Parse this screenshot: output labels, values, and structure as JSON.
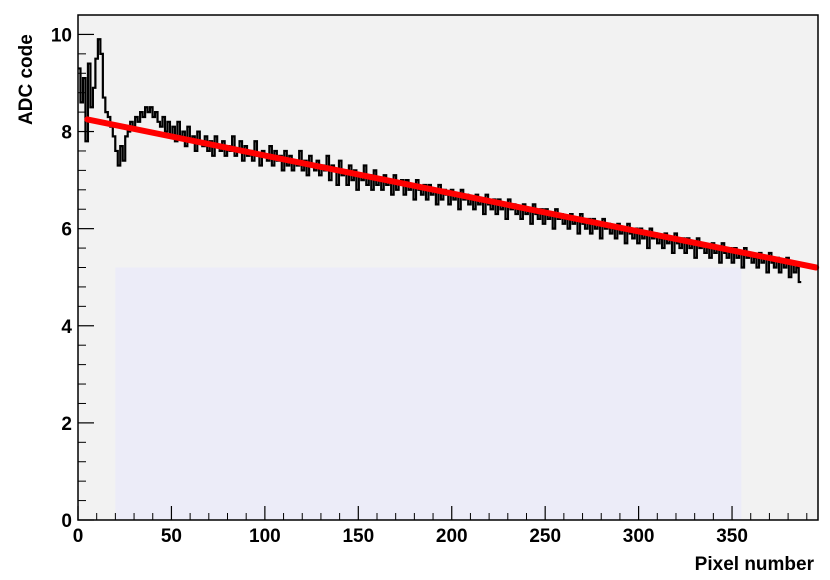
{
  "chart_data": {
    "type": "line",
    "title": "",
    "xlabel": "Pixel number",
    "ylabel": "ADC code",
    "xlim": [
      0,
      396
    ],
    "ylim": [
      0,
      10.4
    ],
    "x_ticks": [
      0,
      50,
      100,
      150,
      200,
      250,
      300,
      350
    ],
    "y_ticks": [
      0,
      2,
      4,
      6,
      8,
      10
    ],
    "grid": false,
    "legend": "none",
    "colors": {
      "frame_bg": "#f2f2f2",
      "shaded_region": "#ececf8",
      "histogram": "#000000",
      "fit": "#ff0000",
      "axes": "#000000"
    },
    "shaded_region": {
      "x": [
        20,
        355
      ],
      "y": [
        0,
        5.2
      ]
    },
    "series": [
      {
        "type": "step",
        "bin_width": 1,
        "x_start": 0,
        "values": [
          9.3,
          8.6,
          9.1,
          7.8,
          9.4,
          8.5,
          8.9,
          9.5,
          9.9,
          9.6,
          8.7,
          8.4,
          8.3,
          8.1,
          7.9,
          7.6,
          7.3,
          7.7,
          7.4,
          7.9,
          8.0,
          8.2,
          8.1,
          8.3,
          8.2,
          8.4,
          8.3,
          8.5,
          8.4,
          8.5,
          8.3,
          8.4,
          8.2,
          8.1,
          8.3,
          8.0,
          8.2,
          7.9,
          8.1,
          7.8,
          8.2,
          7.9,
          8.0,
          7.7,
          8.1,
          7.8,
          7.9,
          7.6,
          8.0,
          7.8,
          7.7,
          7.9,
          7.6,
          7.8,
          7.5,
          7.9,
          7.7,
          7.6,
          7.8,
          7.5,
          7.7,
          7.6,
          7.9,
          7.5,
          7.6,
          7.8,
          7.4,
          7.7,
          7.5,
          7.6,
          7.4,
          7.8,
          7.5,
          7.3,
          7.6,
          7.5,
          7.4,
          7.7,
          7.3,
          7.6,
          7.4,
          7.5,
          7.2,
          7.6,
          7.3,
          7.5,
          7.2,
          7.4,
          7.3,
          7.6,
          7.2,
          7.4,
          7.1,
          7.5,
          7.3,
          7.2,
          7.4,
          7.1,
          7.3,
          7.2,
          7.5,
          7.0,
          7.3,
          7.2,
          6.9,
          7.4,
          7.1,
          7.2,
          6.9,
          7.3,
          7.0,
          7.2,
          6.8,
          7.1,
          7.0,
          7.3,
          6.9,
          7.1,
          6.8,
          7.2,
          6.9,
          7.0,
          6.8,
          7.1,
          6.9,
          7.0,
          6.7,
          7.1,
          6.8,
          6.9,
          7.0,
          6.7,
          7.0,
          6.8,
          6.9,
          6.6,
          7.0,
          6.8,
          6.7,
          6.9,
          6.6,
          6.9,
          6.7,
          6.8,
          6.5,
          6.9,
          6.6,
          6.8,
          6.7,
          6.5,
          6.8,
          6.6,
          6.7,
          6.4,
          6.8,
          6.6,
          6.7,
          6.5,
          6.6,
          6.4,
          6.7,
          6.5,
          6.6,
          6.3,
          6.7,
          6.5,
          6.4,
          6.6,
          6.3,
          6.6,
          6.4,
          6.5,
          6.2,
          6.6,
          6.4,
          6.5,
          6.3,
          6.4,
          6.2,
          6.5,
          6.3,
          6.4,
          6.1,
          6.5,
          6.3,
          6.2,
          6.4,
          6.1,
          6.4,
          6.2,
          6.3,
          6.0,
          6.4,
          6.2,
          6.3,
          6.1,
          6.2,
          6.0,
          6.3,
          6.1,
          6.2,
          5.9,
          6.3,
          6.1,
          6.0,
          6.2,
          5.9,
          6.2,
          6.0,
          6.1,
          5.8,
          6.2,
          6.0,
          6.1,
          5.9,
          6.0,
          5.8,
          6.1,
          5.9,
          6.0,
          5.7,
          6.1,
          5.9,
          5.8,
          6.0,
          5.7,
          6.0,
          5.8,
          5.9,
          5.6,
          6.0,
          5.8,
          5.9,
          5.7,
          5.8,
          5.6,
          5.9,
          5.7,
          5.8,
          5.5,
          5.9,
          5.7,
          5.6,
          5.8,
          5.5,
          5.8,
          5.6,
          5.7,
          5.4,
          5.8,
          5.6,
          5.7,
          5.5,
          5.6,
          5.4,
          5.7,
          5.5,
          5.6,
          5.3,
          5.7,
          5.5,
          5.4,
          5.6,
          5.3,
          5.6,
          5.4,
          5.5,
          5.2,
          5.6,
          5.4,
          5.5,
          5.3,
          5.4,
          5.2,
          5.5,
          5.3,
          5.4,
          5.1,
          5.5,
          5.3,
          5.2,
          5.4,
          5.1,
          5.3,
          5.2,
          5.4,
          5.0,
          5.3,
          5.1,
          5.2,
          4.9
        ],
        "x_step": 1.33
      },
      {
        "type": "fit_line",
        "x": [
          5,
          395
        ],
        "y": [
          8.25,
          5.2
        ]
      }
    ]
  }
}
